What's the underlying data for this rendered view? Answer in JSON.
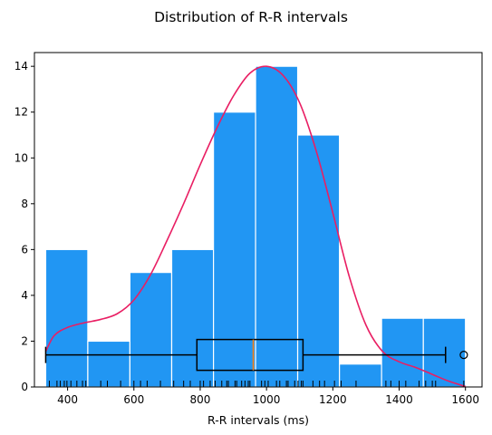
{
  "chart_data": {
    "type": "histogram",
    "title": "Distribution of R-R intervals",
    "xlabel": "R-R intervals (ms)",
    "ylabel": "",
    "xlim": [
      300,
      1650
    ],
    "ylim": [
      0,
      14.6
    ],
    "xticks": [
      400,
      600,
      800,
      1000,
      1200,
      1400,
      1600
    ],
    "yticks": [
      0,
      2,
      4,
      6,
      8,
      10,
      12,
      14
    ],
    "grid": false,
    "colors": {
      "bars": "#2196f3",
      "bar_edge": "#ffffff",
      "kde": "#e91e63",
      "box": "#000000",
      "median": "#ff7f0e"
    },
    "bins": [
      {
        "x0": 334,
        "x1": 461,
        "count": 6
      },
      {
        "x0": 461,
        "x1": 588,
        "count": 2
      },
      {
        "x0": 588,
        "x1": 714,
        "count": 5
      },
      {
        "x0": 714,
        "x1": 840,
        "count": 6
      },
      {
        "x0": 840,
        "x1": 967,
        "count": 12
      },
      {
        "x0": 967,
        "x1": 1094,
        "count": 14
      },
      {
        "x0": 1094,
        "x1": 1220,
        "count": 11
      },
      {
        "x0": 1220,
        "x1": 1347,
        "count": 1
      },
      {
        "x0": 1347,
        "x1": 1473,
        "count": 3
      },
      {
        "x0": 1473,
        "x1": 1600,
        "count": 3
      }
    ],
    "kde_curve": [
      [
        334,
        1.55
      ],
      [
        360,
        2.25
      ],
      [
        400,
        2.6
      ],
      [
        450,
        2.8
      ],
      [
        500,
        2.95
      ],
      [
        550,
        3.2
      ],
      [
        600,
        3.8
      ],
      [
        650,
        4.9
      ],
      [
        700,
        6.4
      ],
      [
        750,
        8.0
      ],
      [
        800,
        9.7
      ],
      [
        850,
        11.3
      ],
      [
        900,
        12.7
      ],
      [
        950,
        13.7
      ],
      [
        1000,
        14.0
      ],
      [
        1050,
        13.6
      ],
      [
        1100,
        12.4
      ],
      [
        1150,
        10.3
      ],
      [
        1200,
        7.6
      ],
      [
        1250,
        4.8
      ],
      [
        1300,
        2.7
      ],
      [
        1350,
        1.55
      ],
      [
        1400,
        1.1
      ],
      [
        1450,
        0.85
      ],
      [
        1500,
        0.55
      ],
      [
        1550,
        0.25
      ],
      [
        1600,
        0.02
      ]
    ],
    "boxplot": {
      "y": 1.4,
      "whisker_low": 334,
      "q1": 790,
      "median": 960,
      "q3": 1110,
      "whisker_high": 1540,
      "outliers": [
        1595
      ]
    },
    "rug": [
      345,
      368,
      378,
      390,
      398,
      410,
      428,
      445,
      455,
      500,
      520,
      560,
      600,
      620,
      640,
      680,
      720,
      750,
      770,
      800,
      810,
      830,
      845,
      865,
      880,
      885,
      905,
      910,
      925,
      935,
      945,
      950,
      985,
      995,
      1005,
      1030,
      1040,
      1060,
      1065,
      1085,
      1095,
      1105,
      1110,
      1140,
      1160,
      1175,
      1205,
      1225,
      1270,
      1360,
      1375,
      1400,
      1420,
      1460,
      1480,
      1500,
      1510,
      1595
    ]
  }
}
